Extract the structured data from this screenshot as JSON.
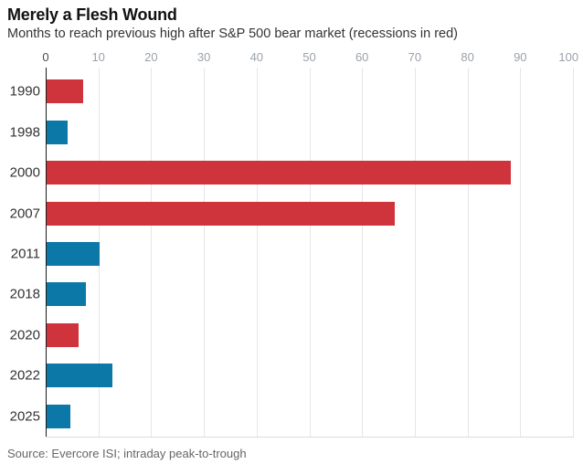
{
  "chart_data": {
    "type": "bar",
    "orientation": "horizontal",
    "title": "Merely a Flesh Wound",
    "subtitle": "Months to reach previous high after S&P 500 bear market (recessions in red)",
    "source": "Source: Evercore ISI; intraday peak-to-trough",
    "xlabel": "",
    "ylabel": "",
    "xlim": [
      0,
      100
    ],
    "x_ticks": [
      0,
      10,
      20,
      30,
      40,
      50,
      60,
      70,
      80,
      90,
      100
    ],
    "grid": "vertical",
    "legend": "none",
    "categories": [
      "1990",
      "1998",
      "2000",
      "2007",
      "2011",
      "2018",
      "2020",
      "2022",
      "2025"
    ],
    "values": [
      7,
      4,
      88,
      66,
      10,
      7.5,
      6,
      12.5,
      4.5
    ],
    "recession": [
      true,
      false,
      true,
      true,
      false,
      false,
      true,
      false,
      false
    ],
    "colors": {
      "recession": "#cf343c",
      "normal": "#0b78a8",
      "axis_line": "#1a1a1a",
      "gridline": "#e4e6e9",
      "tick_label": "#9aa2aa"
    }
  }
}
